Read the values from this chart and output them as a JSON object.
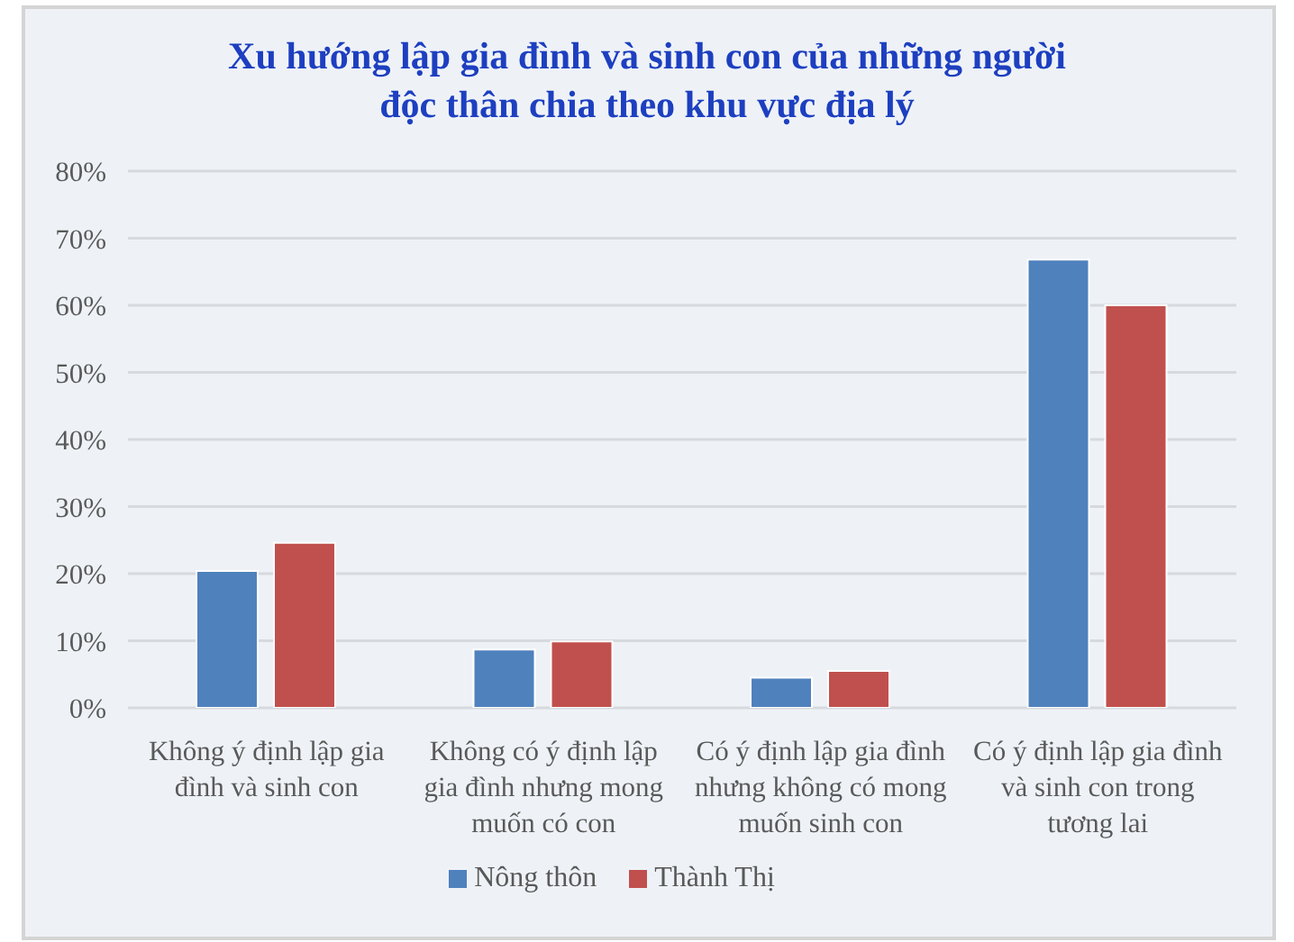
{
  "chart_data": {
    "type": "bar",
    "title": "Xu hướng lập gia đình và sinh con của những người độc thân chia theo khu vực địa lý",
    "categories": [
      "Không ý định lập gia đình và sinh con",
      "Không có ý định lập gia đình nhưng mong muốn có con",
      "Có ý định lập gia đình nhưng không có mong muốn sinh con",
      "Có ý định lập gia đình và sinh con trong tương lai"
    ],
    "series": [
      {
        "name": "Nông thôn",
        "color": "#4f81bd",
        "values": [
          20.4,
          8.7,
          4.5,
          66.8
        ]
      },
      {
        "name": "Thành Thị",
        "color": "#c0504d",
        "values": [
          24.6,
          9.9,
          5.5,
          60.0
        ]
      }
    ],
    "ylim": [
      0,
      80
    ],
    "yticks": [
      {
        "value": 0,
        "label": "0%"
      },
      {
        "value": 10,
        "label": "10%"
      },
      {
        "value": 20,
        "label": "20%"
      },
      {
        "value": 30,
        "label": "30%"
      },
      {
        "value": 40,
        "label": "40%"
      },
      {
        "value": 50,
        "label": "50%"
      },
      {
        "value": 60,
        "label": "60%"
      },
      {
        "value": 70,
        "label": "70%"
      },
      {
        "value": 80,
        "label": "80%"
      }
    ],
    "grid": "y",
    "legend": "bottom"
  }
}
